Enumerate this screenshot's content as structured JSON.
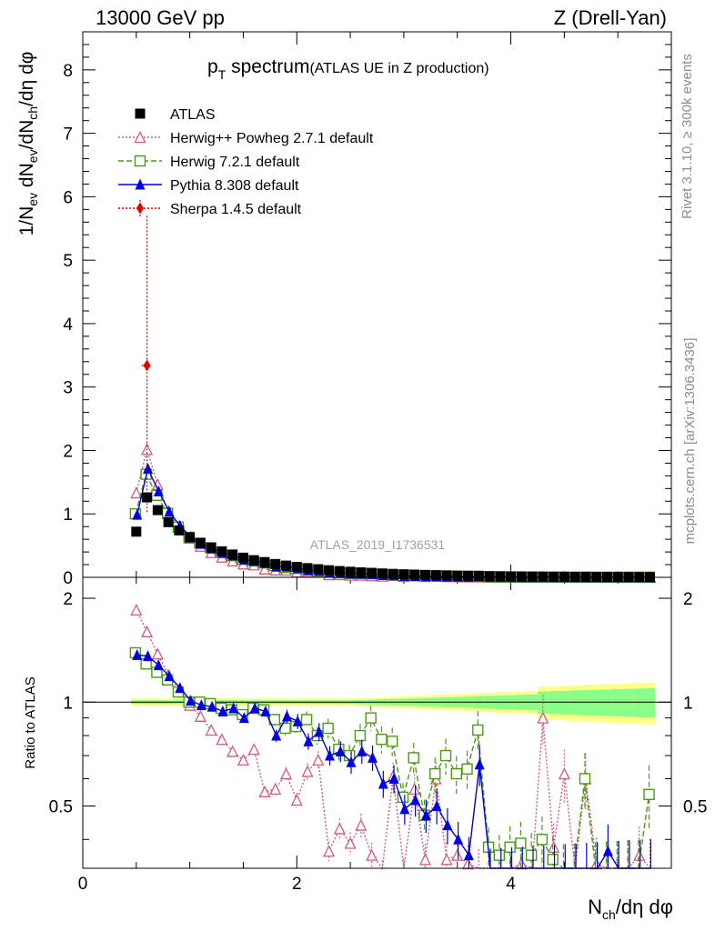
{
  "header": {
    "left": "13000 GeV pp",
    "right": "Z (Drell-Yan)"
  },
  "main_title": {
    "main": "p",
    "sub": "T",
    "rest": " spectrum",
    "small": "(ATLAS UE in Z production)"
  },
  "side": {
    "rivet": "Rivet 3.1.10, ≥ 300k events",
    "mcplots": "mcplots.cern.ch [arXiv:1306.3436]"
  },
  "analysis_id": "ATLAS_2019_I1736531",
  "axes": {
    "ylabel_top": "1/N_ev dN_ev/dN_ch/dη dφ",
    "ylabel_bottom": "Ratio to ATLAS",
    "xlabel": "N_ch/dη dφ",
    "x_ticks": [
      "0",
      "2",
      "4"
    ],
    "y_ticks_top": [
      "0",
      "1",
      "2",
      "3",
      "4",
      "5",
      "6",
      "7",
      "8"
    ],
    "y_ticks_bottom": [
      "0.5",
      "1",
      "2"
    ]
  },
  "legend": [
    {
      "label": "ATLAS",
      "color": "#000000",
      "marker": "square-filled",
      "style": "none"
    },
    {
      "label": "Herwig++ Powheg 2.7.1 default",
      "color": "#d05a80",
      "marker": "triangle-open",
      "style": "dotted"
    },
    {
      "label": "Herwig 7.2.1 default",
      "color": "#4a9a14",
      "marker": "square-open",
      "style": "dashed"
    },
    {
      "label": "Pythia 8.308 default",
      "color": "#0000e0",
      "marker": "triangle-filled",
      "style": "solid"
    },
    {
      "label": "Sherpa 1.4.5 default",
      "color": "#e00000",
      "marker": "diamond-filled",
      "style": "dotted"
    }
  ],
  "chart_data": {
    "type": "line",
    "title": "pT spectrum (ATLAS UE in Z production)",
    "xlabel": "N_ch/dη dφ",
    "ylabel": "1/N_ev dN_ev/dN_ch/dη dφ",
    "xlim": [
      0,
      5.5
    ],
    "ylim_main": [
      0,
      8.6
    ],
    "ylim_ratio": [
      0.33,
      2.3
    ],
    "ratio_scale": "log",
    "x": [
      0.5,
      0.6,
      0.7,
      0.8,
      0.9,
      1.0,
      1.1,
      1.2,
      1.3,
      1.4,
      1.5,
      1.6,
      1.7,
      1.8,
      1.9,
      2.0,
      2.1,
      2.2,
      2.3,
      2.4,
      2.5,
      2.6,
      2.7,
      2.8,
      2.9,
      3.0,
      3.1,
      3.2,
      3.3,
      3.4,
      3.5,
      3.6,
      3.7,
      3.8,
      3.9,
      4.0,
      4.1,
      4.2,
      4.3,
      4.4,
      4.5,
      4.6,
      4.7,
      4.8,
      4.9,
      5.0,
      5.1,
      5.2,
      5.3
    ],
    "data": {
      "name": "ATLAS",
      "values": [
        0.72,
        1.26,
        1.06,
        0.87,
        0.74,
        0.63,
        0.54,
        0.47,
        0.41,
        0.36,
        0.31,
        0.27,
        0.24,
        0.21,
        0.185,
        0.165,
        0.145,
        0.128,
        0.112,
        0.099,
        0.088,
        0.078,
        0.069,
        0.061,
        0.054,
        0.048,
        0.043,
        0.038,
        0.034,
        0.03,
        0.027,
        0.024,
        0.021,
        0.019,
        0.017,
        0.015,
        0.013,
        0.012,
        0.011,
        0.0095,
        0.0085,
        0.0076,
        0.0068,
        0.006,
        0.0054,
        0.0048,
        0.0043,
        0.0038,
        0.0034
      ]
    },
    "series": [
      {
        "name": "Herwig++ Powheg 2.7.1 default",
        "ratio": [
          1.85,
          1.6,
          1.38,
          1.2,
          1.08,
          0.98,
          0.91,
          0.83,
          0.78,
          0.72,
          0.68,
          0.73,
          0.55,
          0.56,
          0.62,
          0.52,
          0.63,
          0.68,
          0.37,
          0.43,
          0.39,
          0.44,
          0.36,
          0.32,
          0.61,
          0.32,
          0.56,
          0.35,
          0.6,
          0.35,
          0.36,
          0.34,
          0.33,
          0.32,
          0.33,
          0.32,
          0.34,
          0.33,
          0.9,
          0.38,
          0.62,
          0.33,
          0.6,
          0.34,
          0.33,
          0.33,
          0.33,
          0.36,
          0.33
        ]
      },
      {
        "name": "Herwig 7.2.1 default",
        "ratio": [
          1.39,
          1.29,
          1.22,
          1.16,
          1.07,
          1.0,
          1.0,
          0.99,
          0.96,
          0.95,
          0.92,
          0.96,
          0.95,
          0.89,
          0.84,
          0.85,
          0.89,
          0.8,
          0.84,
          0.73,
          0.7,
          0.8,
          0.9,
          0.78,
          0.77,
          0.53,
          0.69,
          0.47,
          0.62,
          0.7,
          0.62,
          0.64,
          0.83,
          0.38,
          0.36,
          0.38,
          0.39,
          0.36,
          0.4,
          0.35,
          0.33,
          0.33,
          0.6,
          0.33,
          0.33,
          0.33,
          0.33,
          0.33,
          0.54
        ]
      },
      {
        "name": "Pythia 8.308 default",
        "ratio": [
          1.37,
          1.36,
          1.28,
          1.19,
          1.1,
          1.01,
          0.98,
          0.97,
          0.94,
          0.96,
          0.9,
          0.96,
          0.94,
          0.8,
          0.91,
          0.88,
          0.77,
          0.82,
          0.7,
          0.72,
          0.67,
          0.72,
          0.69,
          0.58,
          0.6,
          0.49,
          0.52,
          0.47,
          0.5,
          0.44,
          0.4,
          0.36,
          0.66,
          0.33,
          0.33,
          0.33,
          0.33,
          0.33,
          0.33,
          0.33,
          0.33,
          0.33,
          0.33,
          0.33,
          0.37,
          0.33,
          0.33,
          0.33,
          0.33
        ]
      },
      {
        "name": "Sherpa 1.4.5 default",
        "points": [
          {
            "x": 0.6,
            "y": 3.34
          }
        ]
      }
    ]
  }
}
